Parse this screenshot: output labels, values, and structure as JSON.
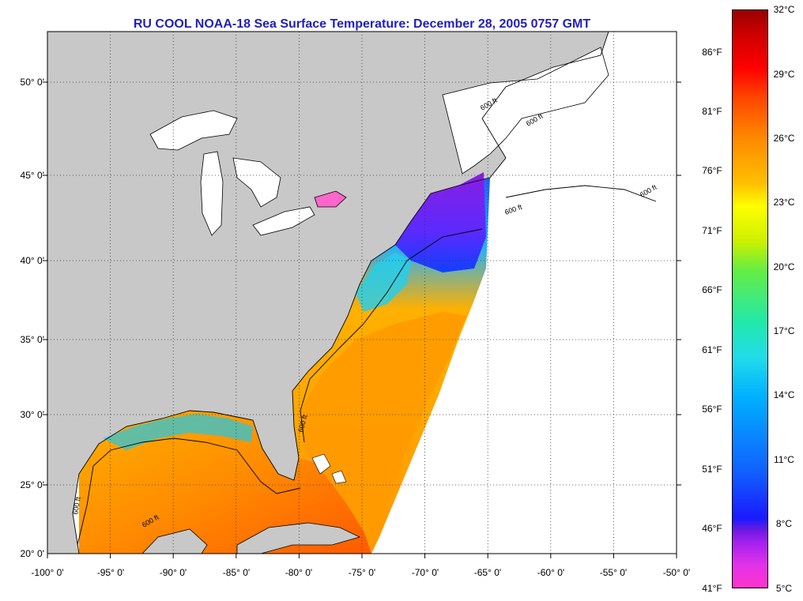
{
  "title": "RU COOL  NOAA-18  Sea Surface Temperature:  December 28, 2005 0757 GMT",
  "lat_labels": [
    "50° 0'",
    "45° 0'",
    "40° 0'",
    "35° 0'",
    "30° 0'",
    "25° 0'",
    "20° 0'"
  ],
  "lon_labels": [
    "-100° 0'",
    "-95° 0'",
    "-90° 0'",
    "-85° 0'",
    "-80° 0'",
    "-75° 0'",
    "-70° 0'",
    "-65° 0'",
    "-60° 0'",
    "-55° 0'",
    "-50° 0'"
  ],
  "contour_labels": [
    "600 ft",
    "600 ft",
    "600 ft",
    "600 ft",
    "600 ft",
    "600 ft",
    "600 ft"
  ],
  "colorbar": {
    "fahrenheit_labels": [
      "86°F",
      "81°F",
      "76°F",
      "71°F",
      "66°F",
      "61°F",
      "56°F",
      "51°F",
      "46°F",
      "41°F"
    ],
    "celsius_labels": [
      "32°C",
      "29°C",
      "26°C",
      "23°C",
      "20°C",
      "17°C",
      "14°C",
      "11°C",
      "8°C",
      "5°C"
    ]
  },
  "colors": {
    "land": "#c8c8c8",
    "ocean_nodata": "#ffffff",
    "title": "#1f1fbf"
  }
}
